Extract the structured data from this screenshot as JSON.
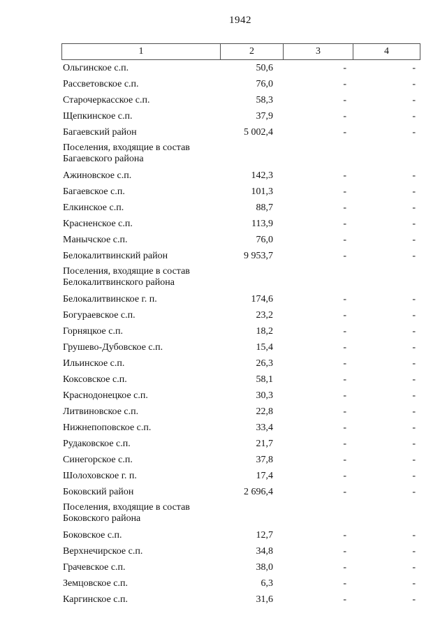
{
  "page": {
    "title": "1942"
  },
  "table": {
    "headers": [
      "1",
      "2",
      "3",
      "4"
    ],
    "rows": [
      {
        "label": "Ольгинское с.п.",
        "value": "50,6",
        "col3": "-",
        "col4": "-"
      },
      {
        "label": "Рассветовское с.п.",
        "value": "76,0",
        "col3": "-",
        "col4": "-"
      },
      {
        "label": "Старочеркасское с.п.",
        "value": "58,3",
        "col3": "-",
        "col4": "-"
      },
      {
        "label": "Щепкинское с.п.",
        "value": "37,9",
        "col3": "-",
        "col4": "-"
      },
      {
        "label": "Багаевский район",
        "value": "5 002,4",
        "col3": "-",
        "col4": "-"
      },
      {
        "section": "Поселения, входящие в состав Багаевского района"
      },
      {
        "label": "Ажиновское с.п.",
        "value": "142,3",
        "col3": "-",
        "col4": "-"
      },
      {
        "label": "Багаевское с.п.",
        "value": "101,3",
        "col3": "-",
        "col4": "-"
      },
      {
        "label": "Елкинское с.п.",
        "value": "88,7",
        "col3": "-",
        "col4": "-"
      },
      {
        "label": "Красненское с.п.",
        "value": "113,9",
        "col3": "-",
        "col4": "-"
      },
      {
        "label": "Манычское с.п.",
        "value": "76,0",
        "col3": "-",
        "col4": "-"
      },
      {
        "label": "Белокалитвинский район",
        "value": "9 953,7",
        "col3": "-",
        "col4": "-"
      },
      {
        "section": "Поселения, входящие в состав Белокалитвинского района"
      },
      {
        "label": "Белокалитвинское г. п.",
        "value": "174,6",
        "col3": "-",
        "col4": "-"
      },
      {
        "label": "Богураевское с.п.",
        "value": "23,2",
        "col3": "-",
        "col4": "-"
      },
      {
        "label": "Горняцкое с.п.",
        "value": "18,2",
        "col3": "-",
        "col4": "-"
      },
      {
        "label": "Грушево-Дубовское с.п.",
        "value": "15,4",
        "col3": "-",
        "col4": "-"
      },
      {
        "label": "Ильинское с.п.",
        "value": "26,3",
        "col3": "-",
        "col4": "-"
      },
      {
        "label": "Коксовское с.п.",
        "value": "58,1",
        "col3": "-",
        "col4": "-"
      },
      {
        "label": "Краснодонецкое с.п.",
        "value": "30,3",
        "col3": "-",
        "col4": "-"
      },
      {
        "label": "Литвиновское с.п.",
        "value": "22,8",
        "col3": "-",
        "col4": "-"
      },
      {
        "label": "Нижнепоповское с.п.",
        "value": "33,4",
        "col3": "-",
        "col4": "-"
      },
      {
        "label": "Рудаковское с.п.",
        "value": "21,7",
        "col3": "-",
        "col4": "-"
      },
      {
        "label": "Синегорское с.п.",
        "value": "37,8",
        "col3": "-",
        "col4": "-"
      },
      {
        "label": "Шолоховское г. п.",
        "value": "17,4",
        "col3": "-",
        "col4": "-"
      },
      {
        "label": "Боковский район",
        "value": "2 696,4",
        "col3": "-",
        "col4": "-"
      },
      {
        "section": "Поселения, входящие в состав Боковского района"
      },
      {
        "label": "Боковское с.п.",
        "value": "12,7",
        "col3": "-",
        "col4": "-"
      },
      {
        "label": "Верхнечирское с.п.",
        "value": "34,8",
        "col3": "-",
        "col4": "-"
      },
      {
        "label": "Грачевское с.п.",
        "value": "38,0",
        "col3": "-",
        "col4": "-"
      },
      {
        "label": "Земцовское с.п.",
        "value": "6,3",
        "col3": "-",
        "col4": "-"
      },
      {
        "label": "Каргинское с.п.",
        "value": "31,6",
        "col3": "-",
        "col4": "-"
      }
    ]
  }
}
